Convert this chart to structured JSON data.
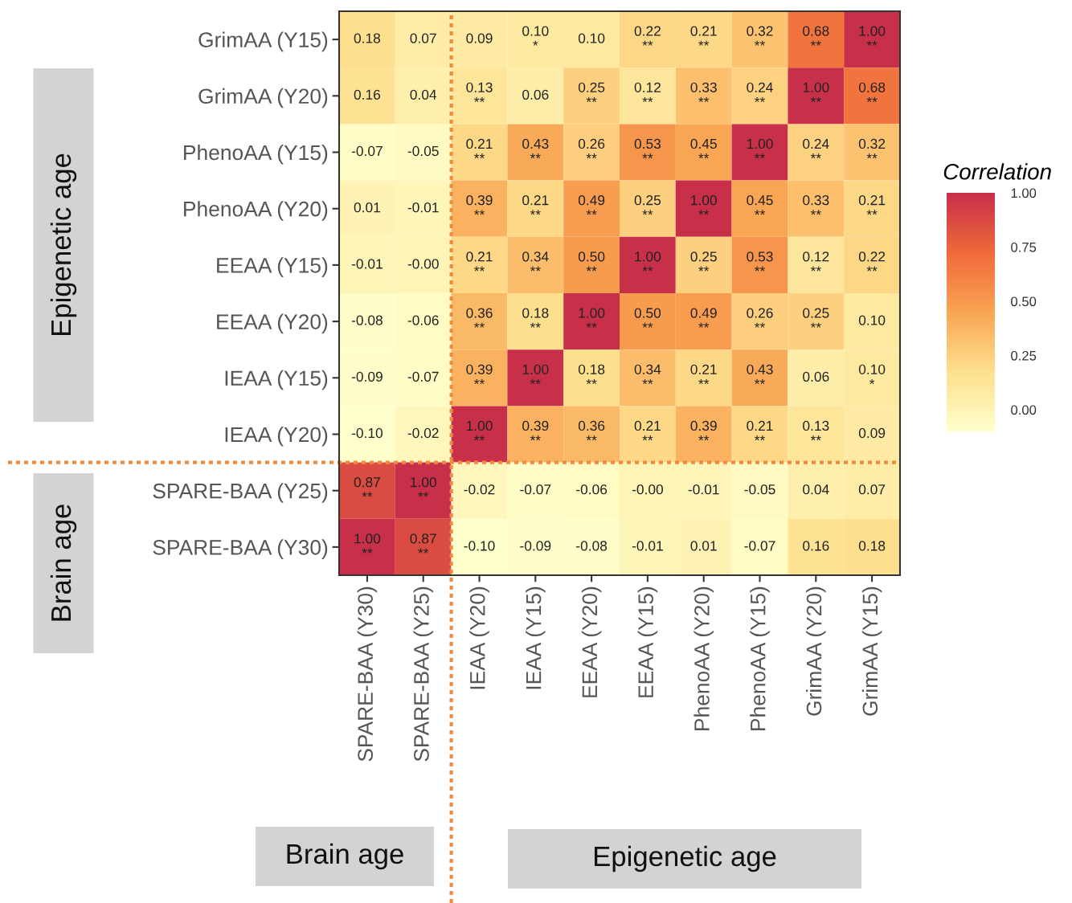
{
  "chart_data": {
    "type": "heatmap",
    "categories": [
      "SPARE-BAA (Y30)",
      "SPARE-BAA (Y25)",
      "IEAA (Y20)",
      "IEAA (Y15)",
      "EEAA (Y20)",
      "EEAA (Y15)",
      "PhenoAA (Y20)",
      "PhenoAA (Y15)",
      "GrimAA (Y20)",
      "GrimAA (Y15)"
    ],
    "y_categories": [
      "GrimAA (Y15)",
      "GrimAA (Y20)",
      "PhenoAA (Y15)",
      "PhenoAA (Y20)",
      "EEAA (Y15)",
      "EEAA (Y20)",
      "IEAA (Y15)",
      "IEAA (Y20)",
      "SPARE-BAA (Y25)",
      "SPARE-BAA (Y30)"
    ],
    "cells": [
      [
        0.18,
        0.07,
        0.09,
        0.1,
        0.1,
        0.22,
        0.21,
        0.32,
        0.68,
        1.0
      ],
      [
        0.16,
        0.04,
        0.13,
        0.06,
        0.25,
        0.12,
        0.33,
        0.24,
        1.0,
        0.68
      ],
      [
        -0.07,
        -0.05,
        0.21,
        0.43,
        0.26,
        0.53,
        0.45,
        1.0,
        0.24,
        0.32
      ],
      [
        0.01,
        -0.01,
        0.39,
        0.21,
        0.49,
        0.25,
        1.0,
        0.45,
        0.33,
        0.21
      ],
      [
        -0.01,
        0.0,
        0.21,
        0.34,
        0.5,
        1.0,
        0.25,
        0.53,
        0.12,
        0.22
      ],
      [
        -0.08,
        -0.06,
        0.36,
        0.18,
        1.0,
        0.5,
        0.49,
        0.26,
        0.25,
        0.1
      ],
      [
        -0.09,
        -0.07,
        0.39,
        1.0,
        0.18,
        0.34,
        0.21,
        0.43,
        0.06,
        0.1
      ],
      [
        -0.1,
        -0.02,
        1.0,
        0.39,
        0.36,
        0.21,
        0.39,
        0.21,
        0.13,
        0.09
      ],
      [
        0.87,
        1.0,
        -0.02,
        -0.07,
        -0.06,
        0.0,
        -0.01,
        -0.05,
        0.04,
        0.07
      ],
      [
        1.0,
        0.87,
        -0.1,
        -0.09,
        -0.08,
        -0.01,
        0.01,
        -0.07,
        0.16,
        0.18
      ]
    ],
    "cell_labels": [
      [
        "0.18",
        "0.07",
        "0.09",
        "0.10\n*",
        "0.10",
        "0.22\n**",
        "0.21\n**",
        "0.32\n**",
        "0.68\n**",
        "1.00\n**"
      ],
      [
        "0.16",
        "0.04",
        "0.13\n**",
        "0.06",
        "0.25\n**",
        "0.12\n**",
        "0.33\n**",
        "0.24\n**",
        "1.00\n**",
        "0.68\n**"
      ],
      [
        "-0.07",
        "-0.05",
        "0.21\n**",
        "0.43\n**",
        "0.26\n**",
        "0.53\n**",
        "0.45\n**",
        "1.00\n**",
        "0.24\n**",
        "0.32\n**"
      ],
      [
        "0.01",
        "-0.01",
        "0.39\n**",
        "0.21\n**",
        "0.49\n**",
        "0.25\n**",
        "1.00\n**",
        "0.45\n**",
        "0.33\n**",
        "0.21\n**"
      ],
      [
        "-0.01",
        "-0.00",
        "0.21\n**",
        "0.34\n**",
        "0.50\n**",
        "1.00\n**",
        "0.25\n**",
        "0.53\n**",
        "0.12\n**",
        "0.22\n**"
      ],
      [
        "-0.08",
        "-0.06",
        "0.36\n**",
        "0.18\n**",
        "1.00\n**",
        "0.50\n**",
        "0.49\n**",
        "0.26\n**",
        "0.25\n**",
        "0.10"
      ],
      [
        "-0.09",
        "-0.07",
        "0.39\n**",
        "1.00\n**",
        "0.18\n**",
        "0.34\n**",
        "0.21\n**",
        "0.43\n**",
        "0.06",
        "0.10\n*"
      ],
      [
        "-0.10",
        "-0.02",
        "1.00\n**",
        "0.39\n**",
        "0.36\n**",
        "0.21\n**",
        "0.39\n**",
        "0.21\n**",
        "0.13\n**",
        "0.09"
      ],
      [
        "0.87\n**",
        "1.00\n**",
        "-0.02",
        "-0.07",
        "-0.06",
        "-0.00",
        "-0.01",
        "-0.05",
        "0.04",
        "0.07"
      ],
      [
        "1.00\n**",
        "0.87\n**",
        "-0.10",
        "-0.09",
        "-0.08",
        "-0.01",
        "0.01",
        "-0.07",
        "0.16",
        "0.18"
      ]
    ],
    "colors": [
      "#ffffcc",
      "#fde08f",
      "#f9a654",
      "#ef6a3a",
      "#c8304a"
    ],
    "cticks": [
      "0.00",
      "0.25",
      "0.50",
      "0.75",
      "1.00"
    ],
    "clabel": "Correlation",
    "annotations": [
      "Epigenetic age",
      "Brain age",
      "Brain age",
      "Epigenetic age"
    ]
  }
}
